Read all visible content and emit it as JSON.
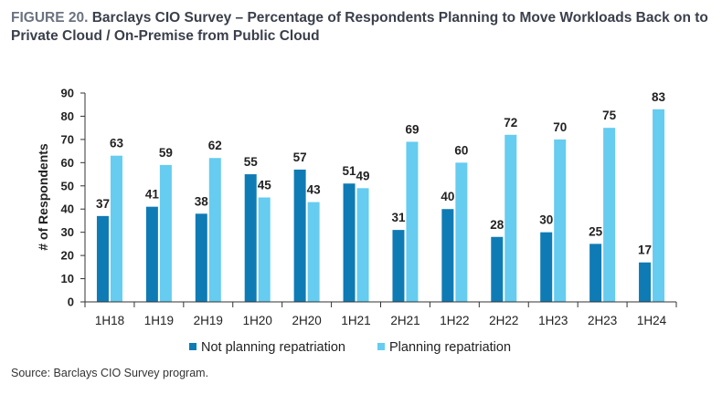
{
  "figure_label": "FIGURE 20.",
  "source": "Source: Barclays CIO Survey program.",
  "colors": {
    "not_planning": "#0f7bb5",
    "planning": "#66ccf0",
    "axis": "#333333"
  },
  "chart_data": {
    "type": "bar",
    "title": "Barclays CIO Survey – Percentage of Respondents Planning to Move Workloads Back on to Private Cloud / On-Premise from Public Cloud",
    "xlabel": "",
    "ylabel": "# of Respondents",
    "ylim": [
      0,
      90
    ],
    "yticks": [
      0,
      10,
      20,
      30,
      40,
      50,
      60,
      70,
      80,
      90
    ],
    "grid": false,
    "legend_position": "bottom",
    "categories": [
      "1H18",
      "1H19",
      "2H19",
      "1H20",
      "2H20",
      "1H21",
      "2H21",
      "1H22",
      "2H22",
      "1H23",
      "2H23",
      "1H24"
    ],
    "series": [
      {
        "name": "Not planning repatriation",
        "values": [
          37,
          41,
          38,
          55,
          57,
          51,
          31,
          40,
          28,
          30,
          25,
          17
        ]
      },
      {
        "name": "Planning repatriation",
        "values": [
          63,
          59,
          62,
          45,
          43,
          49,
          69,
          60,
          72,
          70,
          75,
          83
        ]
      }
    ]
  }
}
